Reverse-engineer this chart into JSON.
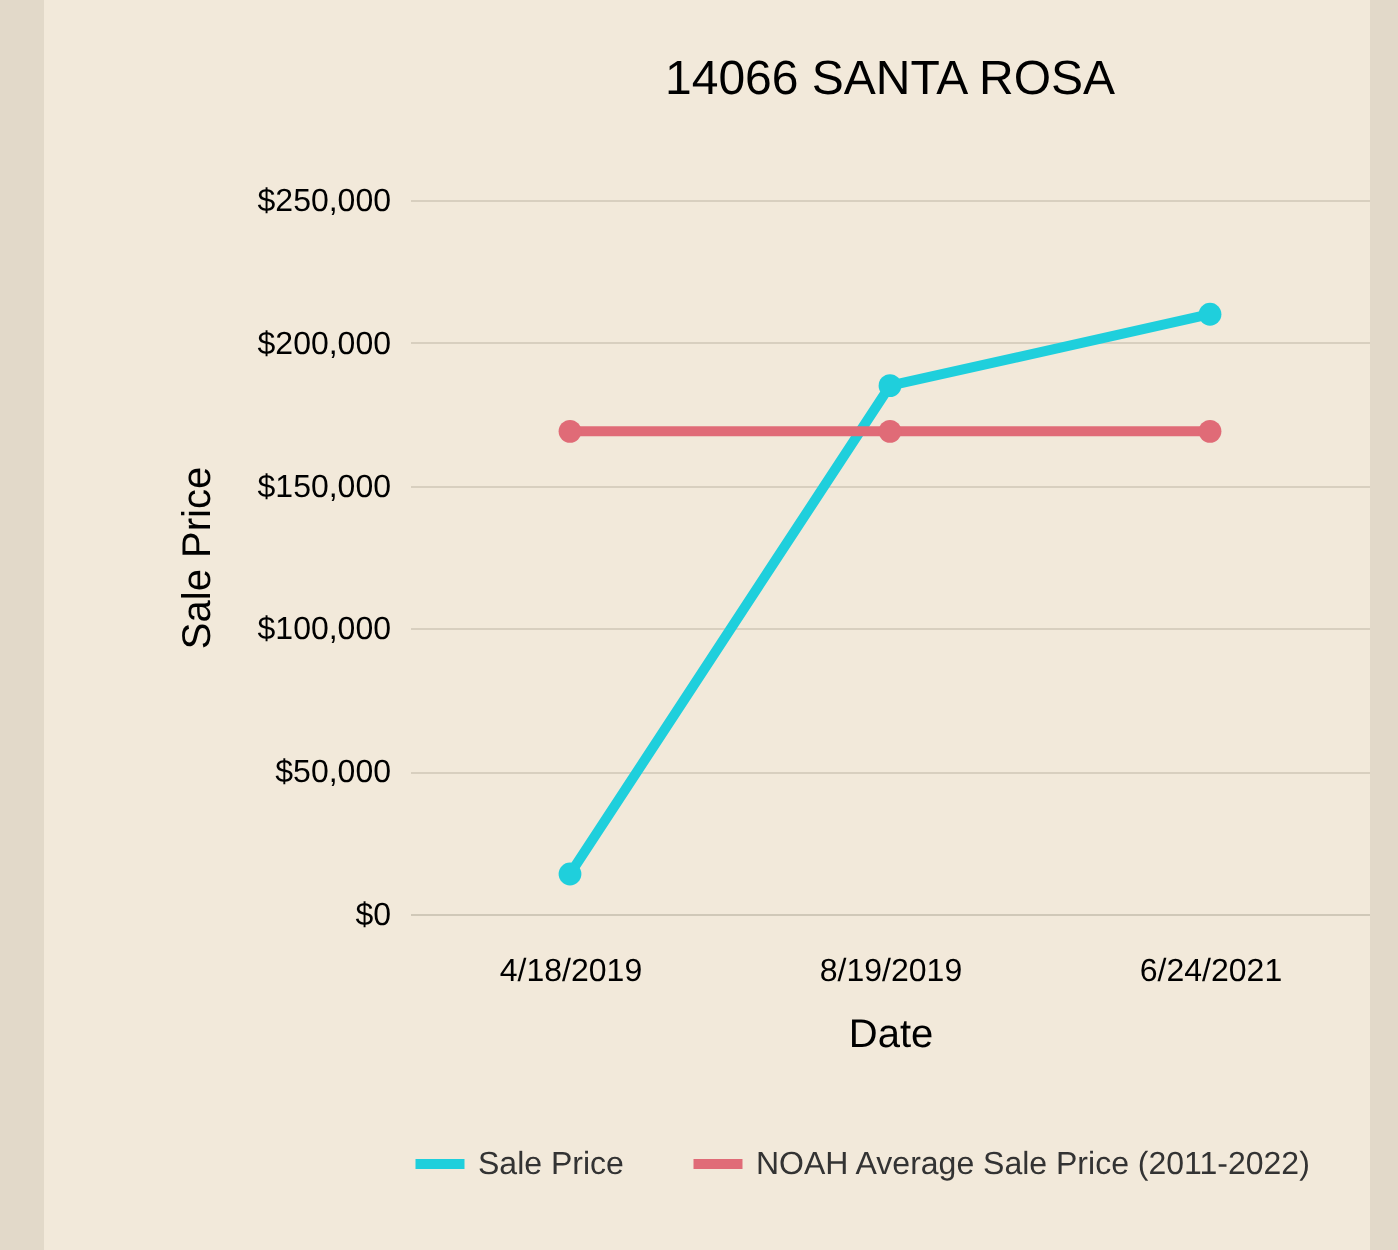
{
  "chart_data": {
    "type": "line",
    "title": "14066 SANTA ROSA",
    "xlabel": "Date",
    "ylabel": "Sale Price",
    "categories": [
      "4/18/2019",
      "8/19/2019",
      "6/24/2021"
    ],
    "series": [
      {
        "name": "Sale Price",
        "color": "#1fcfdc",
        "values": [
          14000,
          185000,
          210000
        ]
      },
      {
        "name": "NOAH Average Sale Price (2011-2022)",
        "color": "#e06b77",
        "values": [
          169000,
          169000,
          169000
        ]
      }
    ],
    "ylim": [
      0,
      250000
    ],
    "yticks": [
      {
        "value": 0,
        "label": "$0"
      },
      {
        "value": 50000,
        "label": "$50,000"
      },
      {
        "value": 100000,
        "label": "$100,000"
      },
      {
        "value": 150000,
        "label": "$150,000"
      },
      {
        "value": 200000,
        "label": "$200,000"
      },
      {
        "value": 250000,
        "label": "$250,000"
      }
    ],
    "grid": "y",
    "legend": "bottom",
    "marker": "circle",
    "line_style": "solid"
  }
}
